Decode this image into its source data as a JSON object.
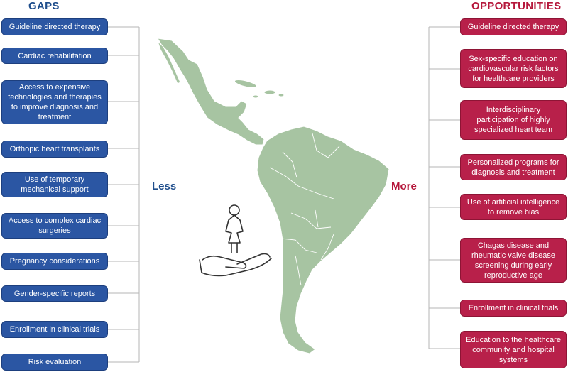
{
  "gaps": {
    "title": "GAPS",
    "items": [
      "Guideline directed therapy",
      "Cardiac rehabilitation",
      "Access to expensive technologies and therapies to improve diagnosis and treatment",
      "Orthopic heart transplants",
      "Use of temporary mechanical support",
      "Access to complex cardiac surgeries",
      "Pregnancy considerations",
      "Gender-specific reports",
      "Enrollment in clinical trials",
      "Risk evaluation"
    ]
  },
  "opportunities": {
    "title": "OPPORTUNITIES",
    "items": [
      "Guideline directed therapy",
      "Sex-specific education on cardiovascular risk factors for healthcare providers",
      "Interdisciplinary participation of highly specialized heart team",
      "Personalized programs for diagnosis and treatment",
      "Use of artificial intelligence to remove bias",
      "Chagas disease and rheumatic valve disease screening during early reproductive age",
      "Enrollment in clinical trials",
      "Education to the healthcare community and hospital systems"
    ]
  },
  "labels": {
    "less": "Less",
    "more": "More"
  },
  "colors": {
    "gaps": "#2b56a3",
    "opportunities": "#b8204a",
    "map_fill": "#a7c4a2",
    "map_stroke": "#ffffff"
  },
  "icons": {
    "center": "woman-in-hand-icon",
    "map": "latin-america-map"
  }
}
